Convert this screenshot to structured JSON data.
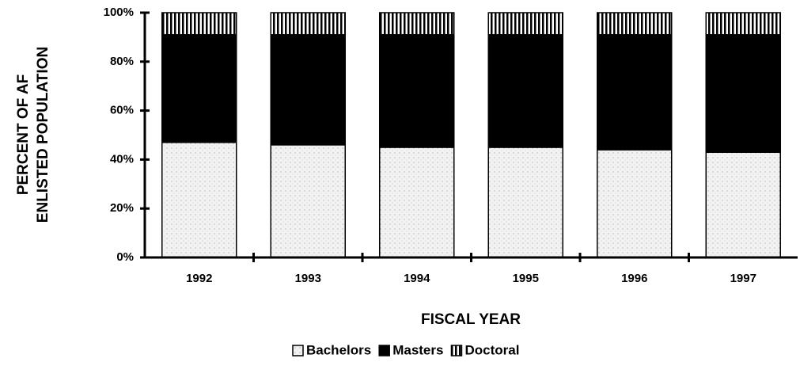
{
  "chart_data": {
    "type": "stacked_bar",
    "categories": [
      "1992",
      "1993",
      "1994",
      "1995",
      "1996",
      "1997"
    ],
    "series": [
      {
        "name": "Bachelors",
        "color": "#f2f2f2",
        "values": [
          47,
          46,
          45,
          45,
          44,
          43
        ]
      },
      {
        "name": "Masters",
        "color": "#000000",
        "values": [
          44,
          45,
          46,
          46,
          47,
          48
        ]
      },
      {
        "name": "Doctoral",
        "color": "#ffffff",
        "values": [
          9,
          9,
          9,
          9,
          9,
          9
        ]
      }
    ],
    "ylim": [
      0,
      100
    ],
    "yticks": [
      {
        "value": 0,
        "label": "0%"
      },
      {
        "value": 20,
        "label": "20%"
      },
      {
        "value": 40,
        "label": "40%"
      },
      {
        "value": 60,
        "label": "60%"
      },
      {
        "value": 80,
        "label": "80%"
      },
      {
        "value": 100,
        "label": "100%"
      }
    ],
    "ylabel": [
      "PERCENT OF AF",
      "ENLISTED POPULATION"
    ],
    "xlabel": "FISCAL YEAR",
    "legend": "bottom"
  }
}
